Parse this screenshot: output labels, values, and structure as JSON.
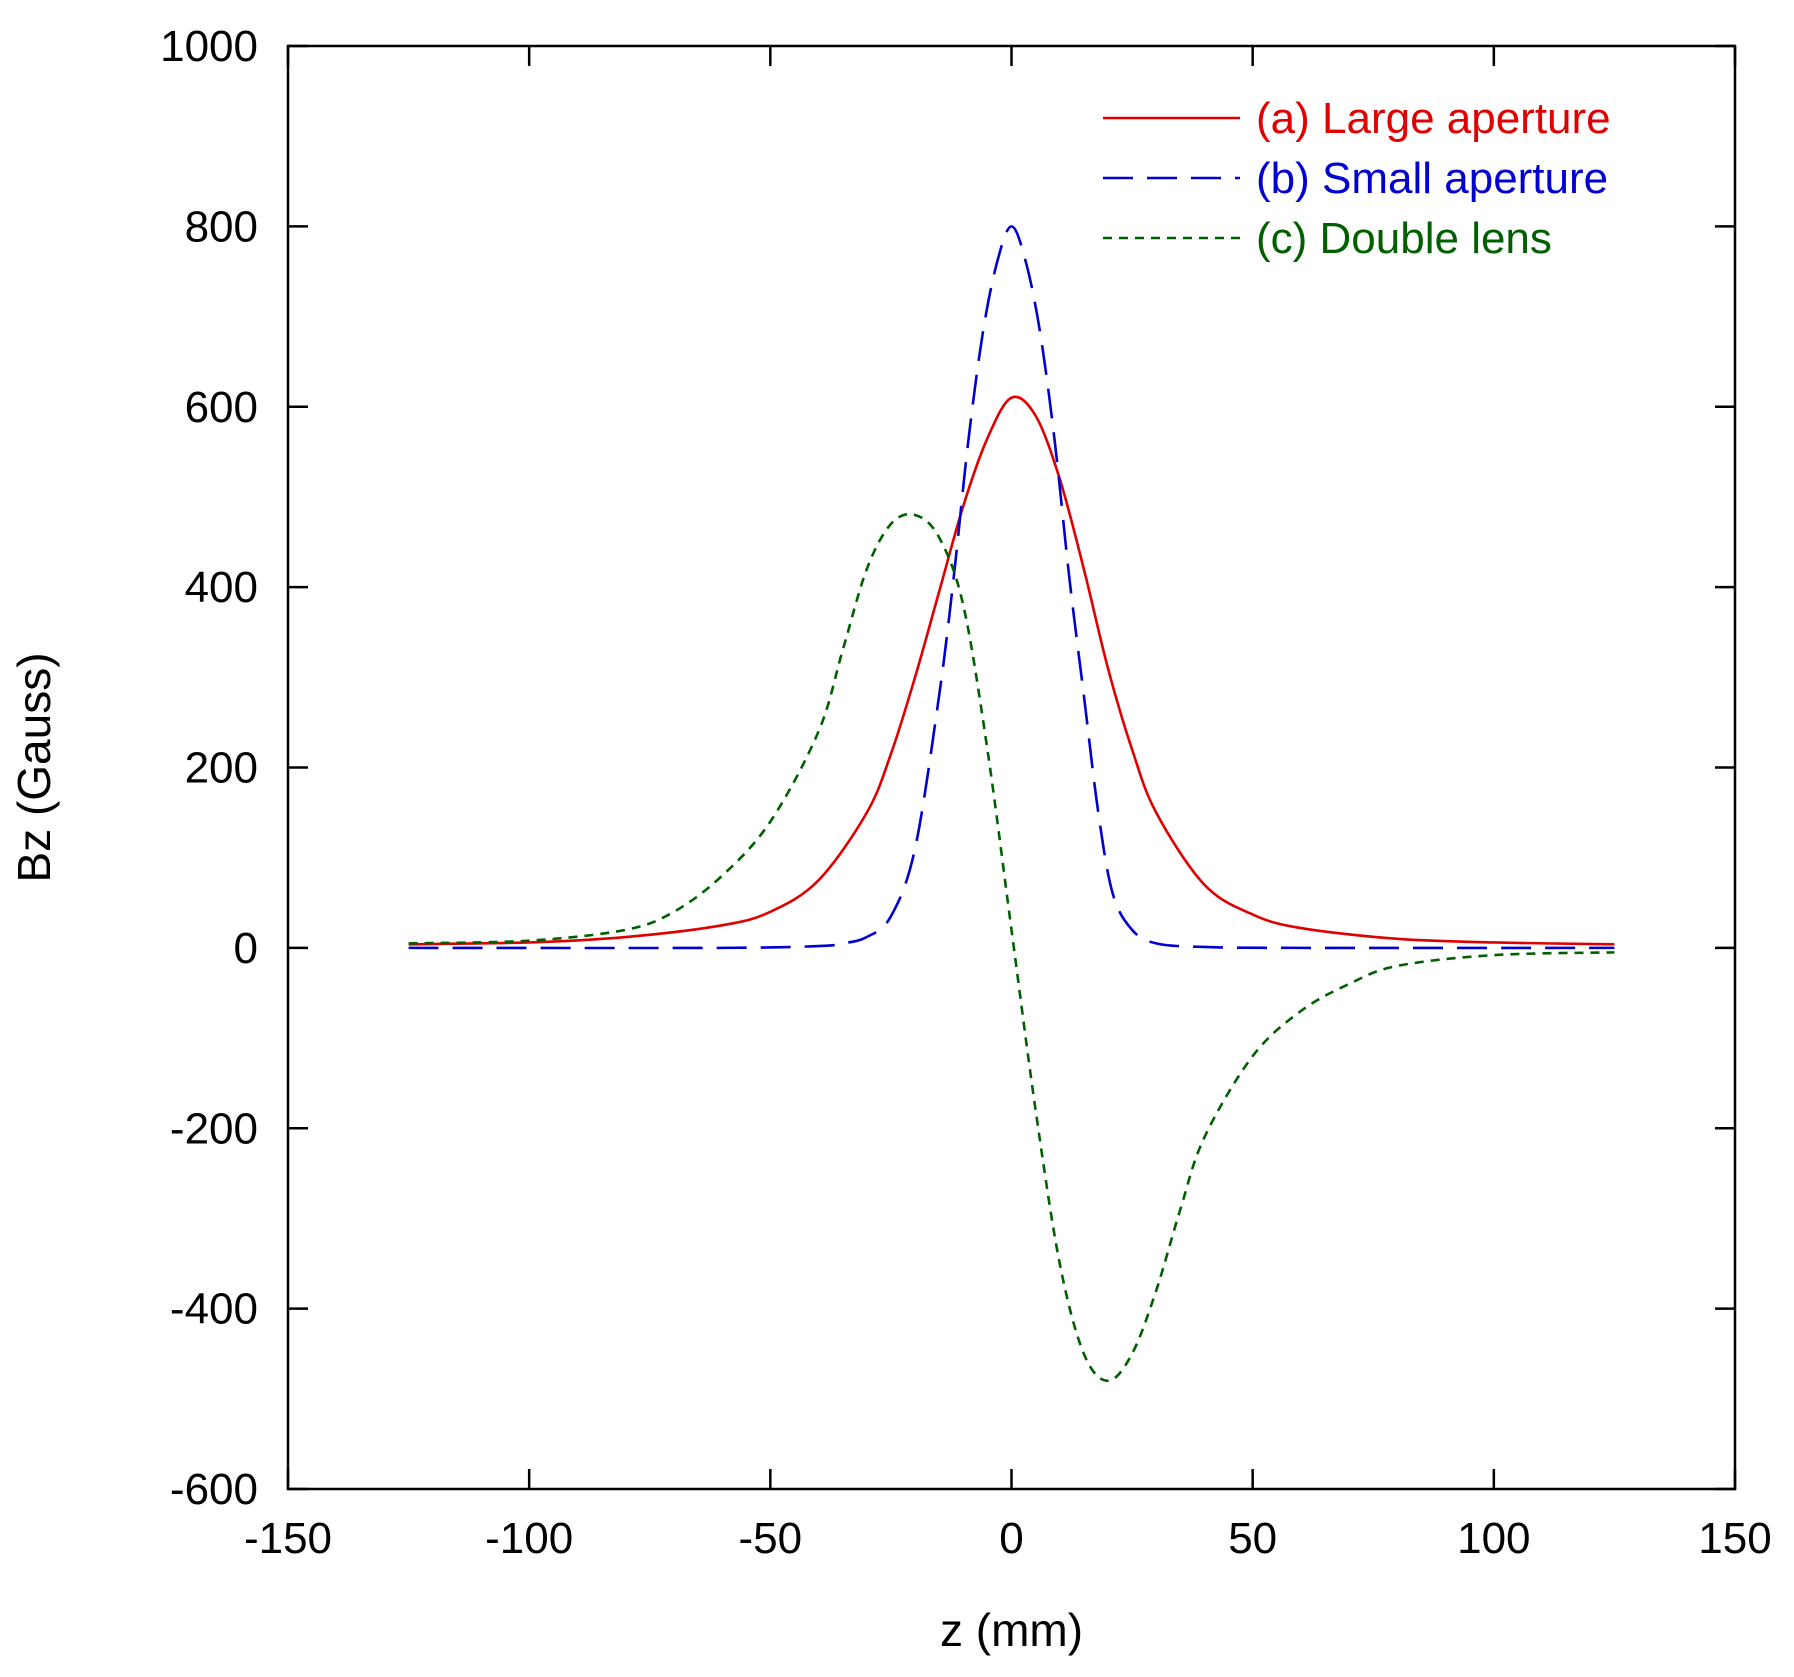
{
  "chart_data": {
    "type": "line",
    "title": "",
    "xlabel": "z (mm)",
    "ylabel": "Bz (Gauss)",
    "xlim": [
      -150,
      150
    ],
    "ylim": [
      -600,
      1000
    ],
    "xticks": [
      -150,
      -100,
      -50,
      0,
      50,
      100,
      150
    ],
    "yticks": [
      -600,
      -400,
      -200,
      0,
      200,
      400,
      600,
      800,
      1000
    ],
    "legend_position": "top-right",
    "grid": false,
    "series": [
      {
        "name": "(a) Large aperture",
        "color": "#e00000",
        "style": "solid",
        "x": [
          -125,
          -100,
          -80,
          -60,
          -50,
          -40,
          -30,
          -25,
          -20,
          -15,
          -10,
          -5,
          0,
          5,
          10,
          15,
          20,
          25,
          30,
          40,
          50,
          60,
          80,
          100,
          125
        ],
        "y": [
          4,
          6,
          12,
          25,
          40,
          75,
          150,
          215,
          300,
          395,
          490,
          565,
          610,
          590,
          520,
          420,
          310,
          220,
          150,
          70,
          37,
          22,
          10,
          6,
          4
        ]
      },
      {
        "name": "(b) Small aperture",
        "color": "#0000d0",
        "style": "dashed",
        "x": [
          -125,
          -60,
          -40,
          -35,
          -30,
          -25,
          -20,
          -15,
          -12,
          -9,
          -6,
          -3,
          0,
          3,
          6,
          9,
          12,
          15,
          18,
          21,
          25,
          30,
          40,
          60,
          125
        ],
        "y": [
          0,
          0,
          2,
          5,
          12,
          35,
          110,
          280,
          410,
          560,
          680,
          760,
          800,
          760,
          680,
          560,
          410,
          280,
          150,
          60,
          20,
          5,
          1,
          0,
          0
        ]
      },
      {
        "name": "(c) Double lens",
        "color": "#006000",
        "style": "dotted",
        "x": [
          -125,
          -100,
          -80,
          -70,
          -60,
          -50,
          -40,
          -35,
          -30,
          -25,
          -20,
          -15,
          -10,
          -5,
          0,
          5,
          10,
          15,
          20,
          25,
          30,
          35,
          40,
          50,
          60,
          70,
          80,
          100,
          125
        ],
        "y": [
          5,
          8,
          20,
          40,
          80,
          140,
          240,
          330,
          420,
          470,
          480,
          455,
          380,
          220,
          20,
          -180,
          -350,
          -450,
          -480,
          -450,
          -380,
          -290,
          -210,
          -120,
          -70,
          -40,
          -20,
          -8,
          -5
        ]
      }
    ]
  }
}
